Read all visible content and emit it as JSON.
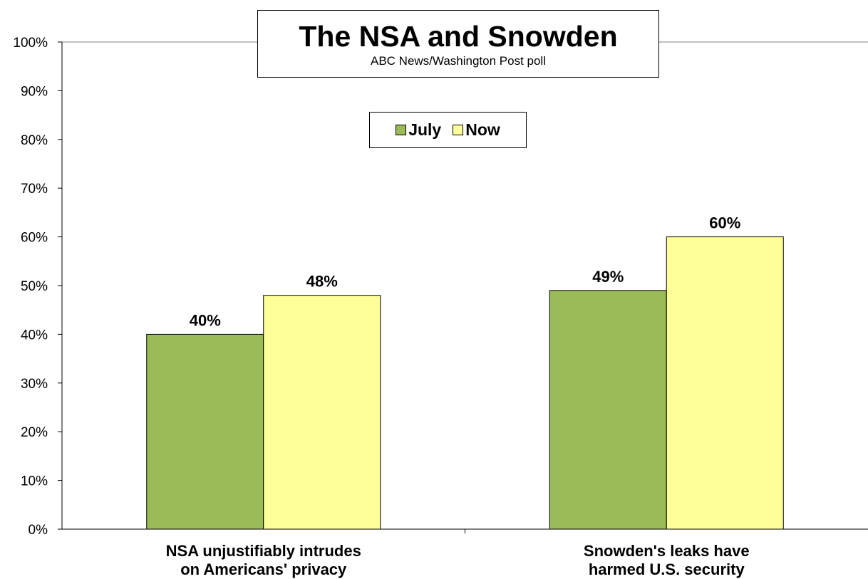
{
  "chart_data": {
    "type": "bar",
    "title": "The NSA and Snowden",
    "subtitle": "ABC News/Washington  Post poll",
    "categories": [
      "NSA unjustifiably intrudes on Americans' privacy",
      "Snowden's leaks have harmed U.S. security"
    ],
    "category_lines": [
      [
        "NSA unjustifiably intrudes",
        "on Americans' privacy"
      ],
      [
        "Snowden's leaks have",
        "harmed U.S. security"
      ]
    ],
    "series": [
      {
        "name": "July",
        "values": [
          40,
          49
        ],
        "labels": [
          "40%",
          "49%"
        ],
        "color": "#9BBB59"
      },
      {
        "name": "Now",
        "values": [
          48,
          60
        ],
        "labels": [
          "48%",
          "60%"
        ],
        "color": "#FFFF99"
      }
    ],
    "ylim": [
      0,
      100
    ],
    "yticks": [
      "0%",
      "10%",
      "20%",
      "30%",
      "40%",
      "50%",
      "60%",
      "70%",
      "80%",
      "90%",
      "100%"
    ],
    "grid": false,
    "legend_position": "top-center"
  }
}
